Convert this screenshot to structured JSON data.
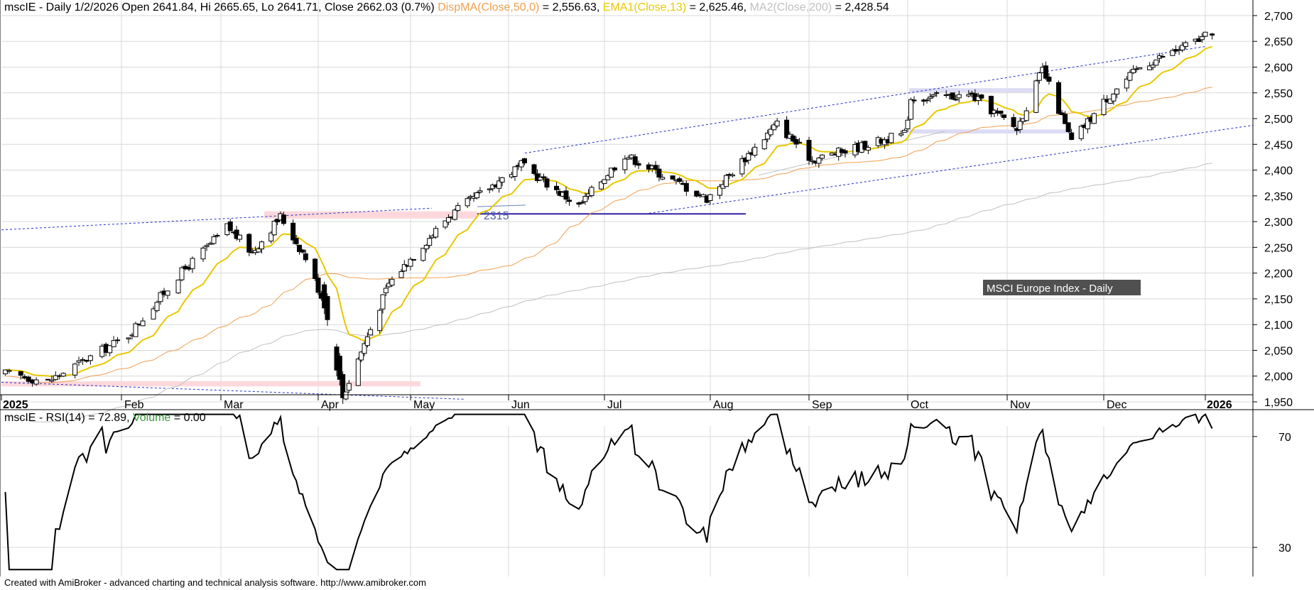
{
  "header": {
    "symbol": "mscIE",
    "ohlc_text": " - Daily 1/2/2026 Open 2641.84, Hi 2665.65, Lo 2641.71, Close 2662.03 (0.7%)",
    "ma50_label": "DispMA(Close,50,0)",
    "ma50_value": " = 2,556.63,",
    "ema13_label": "EMA1(Close,13)",
    "ema13_value": " = 2,625.46,",
    "ma200_label": "MA2(Close,200)",
    "ma200_value": " = 2,428.54"
  },
  "rsi_header": {
    "text": "mscIE - RSI(14) = 72.89, ",
    "volume_label": "Volume",
    "volume_value": " = 0.00"
  },
  "chart_title_box": "MSCI Europe Index - Daily",
  "support_label": "2315",
  "footer": "Created with AmiBroker - advanced charting and technical analysis software. http://www.amibroker.com",
  "colors": {
    "ma50": "#f0a050",
    "ema13": "#e8c800",
    "ma200": "#c0c0c0",
    "channel": "#2030c0",
    "rsi": "#000000",
    "volume_label": "#3a9a3a",
    "grid": "#d8d8d8"
  },
  "chart_data": [
    {
      "type": "candlestick",
      "title": "MSCI Europe Index - Daily",
      "x_tick_labels": [
        "2025",
        "Feb",
        "Mar",
        "Apr",
        "May",
        "Jun",
        "Jul",
        "Aug",
        "Sep",
        "Oct",
        "Nov",
        "Dec",
        "2026"
      ],
      "y_ticks": [
        1950,
        2000,
        2050,
        2100,
        2150,
        2200,
        2250,
        2300,
        2350,
        2400,
        2450,
        2500,
        2550,
        2600,
        2650,
        2700
      ],
      "ylim": [
        1935,
        2705
      ],
      "grid": true,
      "series": [
        {
          "name": "Close",
          "key_points": [
            {
              "date": "2025-01-02",
              "value": 2005
            },
            {
              "date": "2025-01-13",
              "value": 1990
            },
            {
              "date": "2025-02-03",
              "value": 2080
            },
            {
              "date": "2025-02-17",
              "value": 2195
            },
            {
              "date": "2025-03-03",
              "value": 2290
            },
            {
              "date": "2025-03-11",
              "value": 2240
            },
            {
              "date": "2025-03-20",
              "value": 2310
            },
            {
              "date": "2025-03-28",
              "value": 2230
            },
            {
              "date": "2025-04-03",
              "value": 2140
            },
            {
              "date": "2025-04-09",
              "value": 1960
            },
            {
              "date": "2025-04-24",
              "value": 2180
            },
            {
              "date": "2025-05-13",
              "value": 2310
            },
            {
              "date": "2025-06-05",
              "value": 2410
            },
            {
              "date": "2025-06-23",
              "value": 2330
            },
            {
              "date": "2025-07-07",
              "value": 2430
            },
            {
              "date": "2025-07-31",
              "value": 2345
            },
            {
              "date": "2025-08-22",
              "value": 2490
            },
            {
              "date": "2025-09-02",
              "value": 2420
            },
            {
              "date": "2025-09-30",
              "value": 2470
            },
            {
              "date": "2025-10-02",
              "value": 2540
            },
            {
              "date": "2025-10-21",
              "value": 2545
            },
            {
              "date": "2025-11-04",
              "value": 2480
            },
            {
              "date": "2025-11-12",
              "value": 2595
            },
            {
              "date": "2025-11-21",
              "value": 2455
            },
            {
              "date": "2025-12-02",
              "value": 2540
            },
            {
              "date": "2025-12-12",
              "value": 2600
            },
            {
              "date": "2026-01-02",
              "value": 2662.03
            }
          ]
        },
        {
          "name": "DispMA(Close,50,0)",
          "value": 2556.63
        },
        {
          "name": "EMA1(Close,13)",
          "value": 2625.46
        },
        {
          "name": "MA2(Close,200)",
          "value": 2428.54
        }
      ]
    },
    {
      "type": "line",
      "title": "mscIE - RSI(14) = 72.89",
      "y_ticks": [
        30,
        70
      ],
      "ylim": [
        25,
        78
      ],
      "series": [
        {
          "name": "RSI(14)",
          "last": 72.89
        }
      ]
    }
  ]
}
